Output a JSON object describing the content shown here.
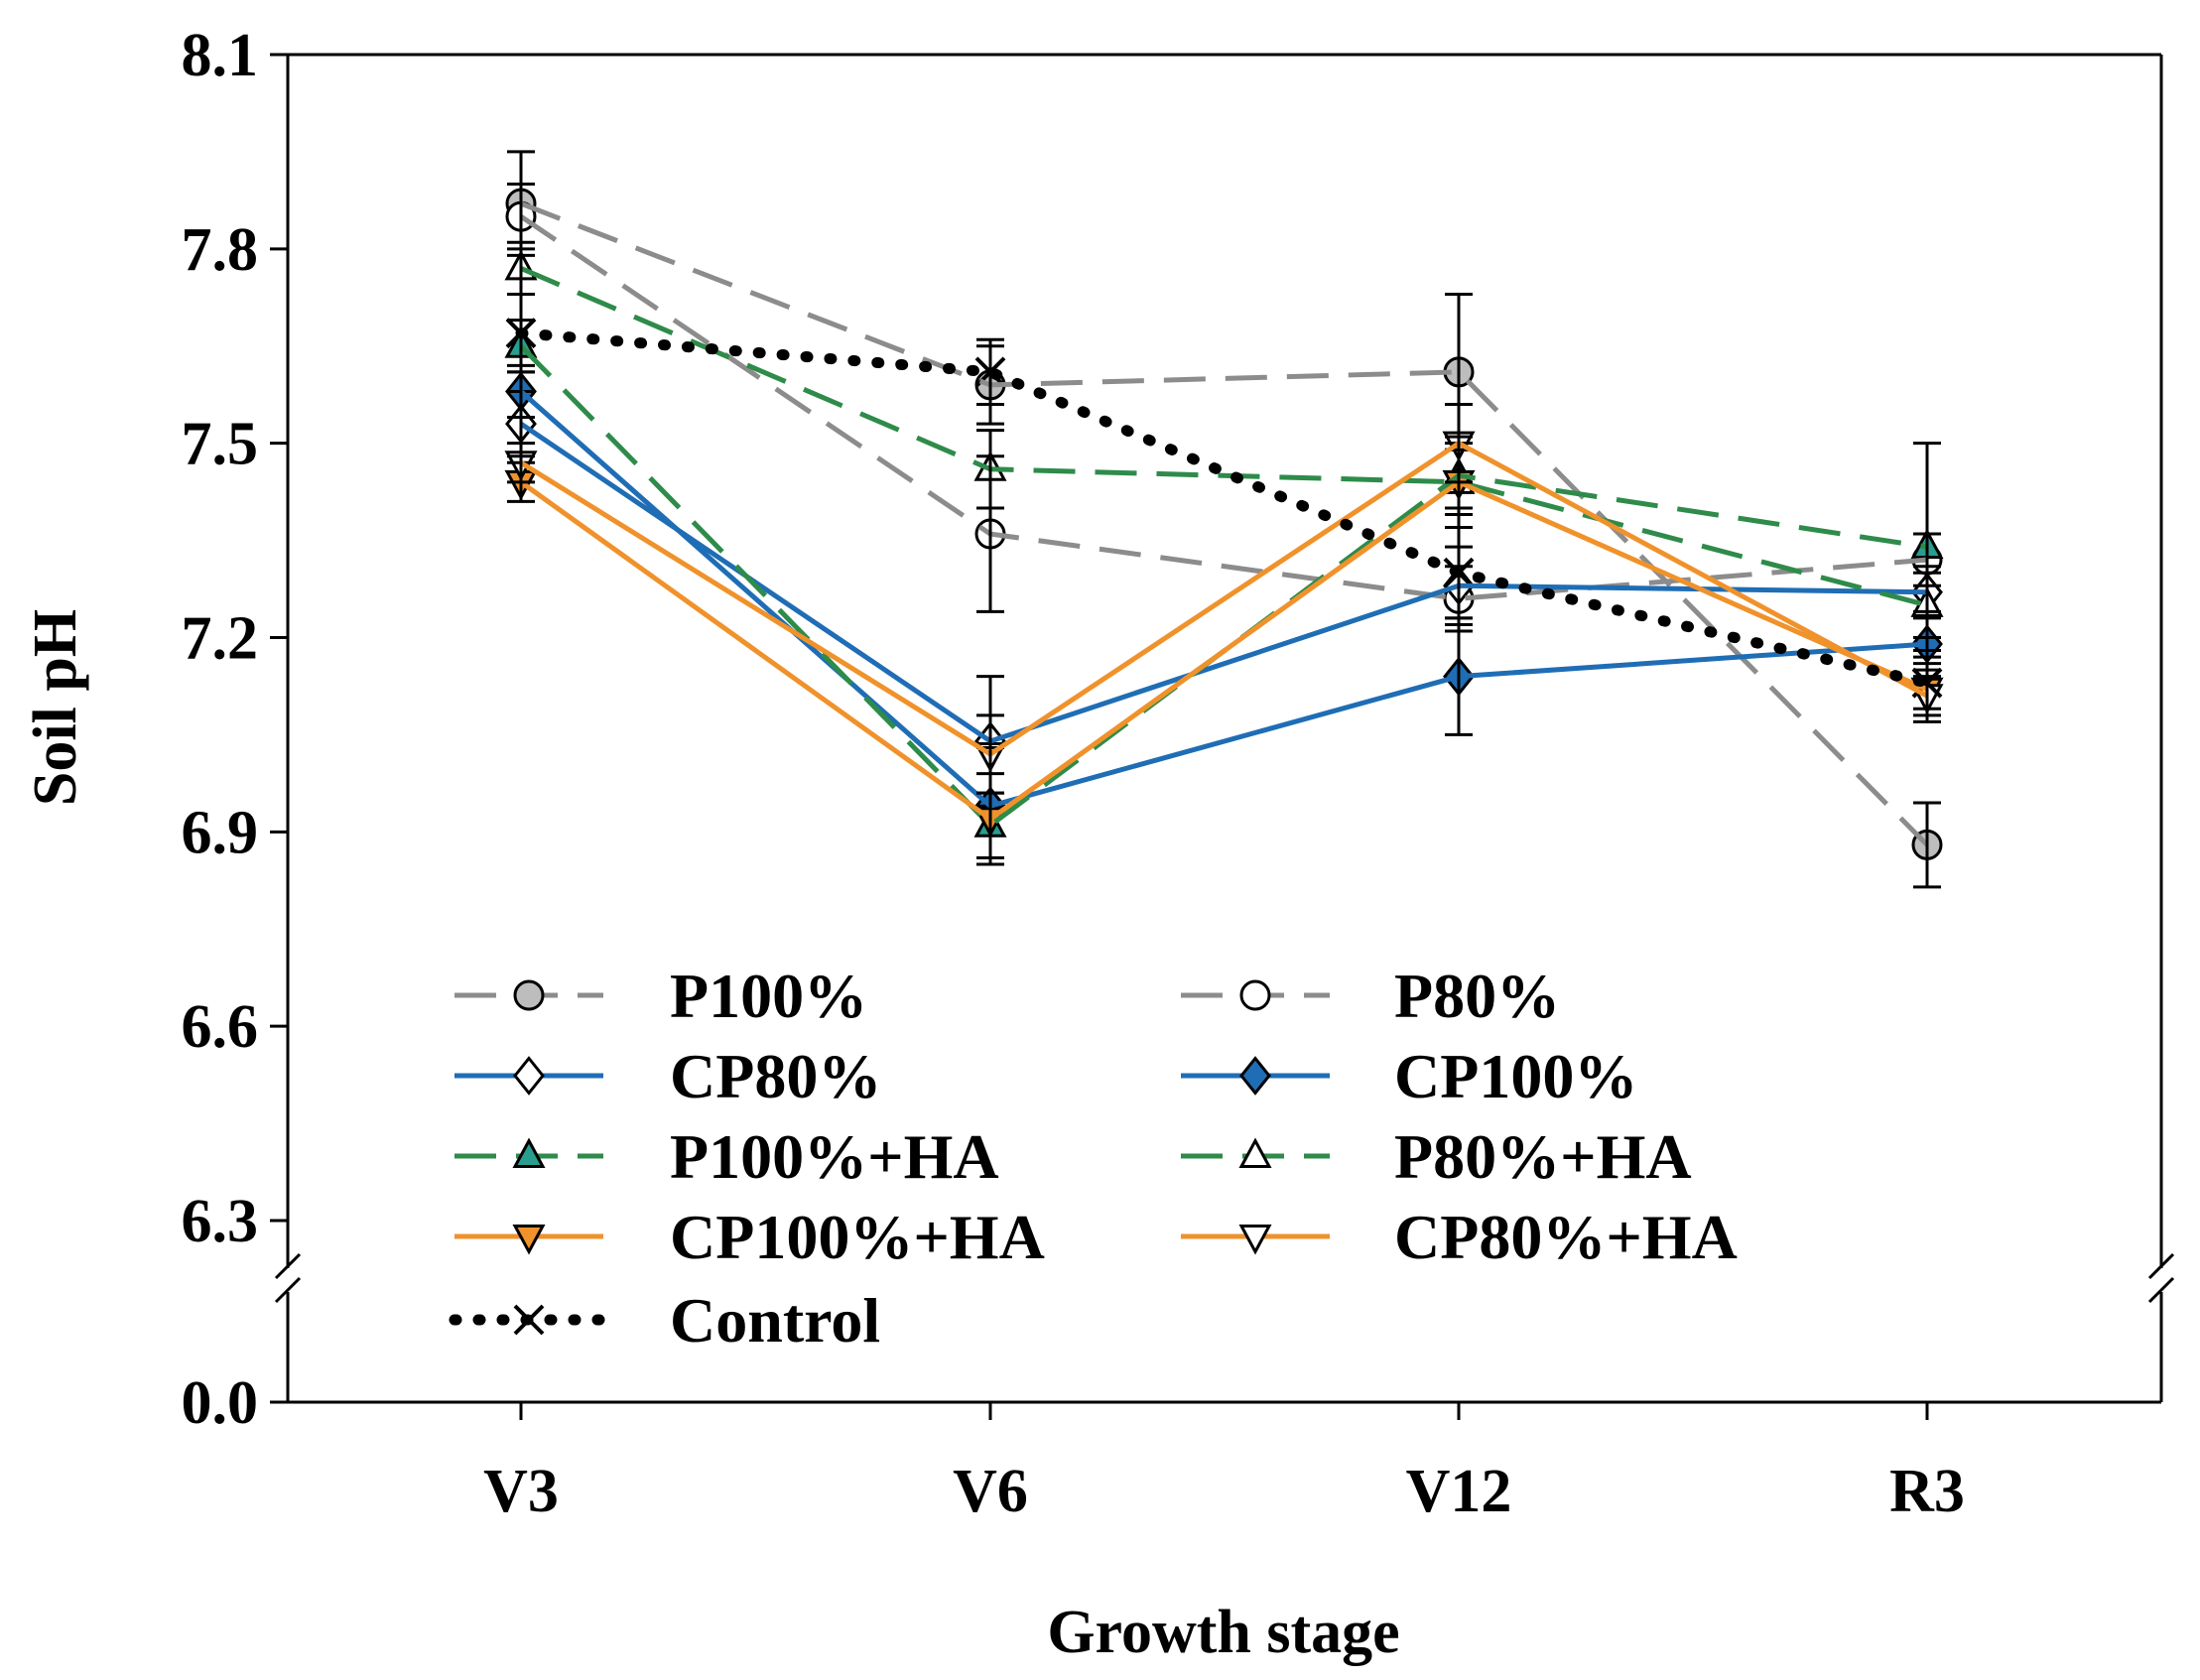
{
  "chart_data": {
    "type": "line",
    "title": "",
    "xlabel": "Growth stage",
    "ylabel": "Soil pH",
    "categories": [
      "V3",
      "V6",
      "V12",
      "R3"
    ],
    "y_ticks": [
      "0.0",
      "6.3",
      "6.6",
      "6.9",
      "7.2",
      "7.5",
      "7.8",
      "8.1"
    ],
    "ylim": [
      6.3,
      8.1
    ],
    "axis_break": {
      "lower": 0.0,
      "upper": 6.3
    },
    "legend_position": "lower-left inside",
    "series": [
      {
        "name": "P100%",
        "values": [
          7.87,
          7.59,
          7.61,
          6.88
        ],
        "errors": [
          0.08,
          0.06,
          0.12,
          0.065
        ],
        "line_color": "#8c8c8c",
        "dash": "dashed",
        "marker": "circle",
        "marker_fill": "#bdbdbd"
      },
      {
        "name": "P80%",
        "values": [
          7.85,
          7.36,
          7.26,
          7.32
        ],
        "errors": [
          0.05,
          0.12,
          0.05,
          0.04
        ],
        "line_color": "#8c8c8c",
        "dash": "dashed",
        "marker": "circle",
        "marker_fill": "#ffffff"
      },
      {
        "name": "CP80%",
        "values": [
          7.53,
          7.04,
          7.28,
          7.27
        ],
        "errors": [
          0.05,
          0.1,
          0.06,
          0.04
        ],
        "line_color": "#1f6db5",
        "dash": "solid",
        "marker": "diamond",
        "marker_fill": "#ffffff"
      },
      {
        "name": "CP100%",
        "values": [
          7.58,
          6.94,
          7.14,
          7.19
        ],
        "errors": [
          0.04,
          0.09,
          0.09,
          0.05
        ],
        "line_color": "#1f6db5",
        "dash": "solid",
        "marker": "diamond",
        "marker_fill": "#1f6db5"
      },
      {
        "name": "P100%+HA",
        "values": [
          7.65,
          6.91,
          7.45,
          7.34
        ],
        "errors": [
          0.04,
          0.05,
          0.05,
          0.16
        ],
        "line_color": "#2e8b4a",
        "dash": "dashed",
        "marker": "triangle-up",
        "marker_fill": "#2a9d8f"
      },
      {
        "name": "P80%+HA",
        "values": [
          7.77,
          7.46,
          7.44,
          7.25
        ],
        "errors": [
          0.04,
          0.06,
          0.07,
          0.05
        ],
        "line_color": "#2e8b4a",
        "dash": "dashed",
        "marker": "triangle-up",
        "marker_fill": "#ffffff"
      },
      {
        "name": "CP100%+HA",
        "values": [
          7.44,
          6.92,
          7.44,
          7.12
        ],
        "errors": [
          0.03,
          0.07,
          0.05,
          0.04
        ],
        "line_color": "#f0922b",
        "dash": "solid",
        "marker": "triangle-down",
        "marker_fill": "#f0922b"
      },
      {
        "name": "CP80%+HA",
        "values": [
          7.47,
          7.02,
          7.5,
          7.11
        ],
        "errors": [
          0.03,
          0.06,
          0.06,
          0.04
        ],
        "line_color": "#f0922b",
        "dash": "solid",
        "marker": "triangle-down",
        "marker_fill": "#ffffff"
      },
      {
        "name": "Control",
        "values": [
          7.67,
          7.61,
          7.3,
          7.13
        ],
        "errors": [
          0.06,
          0.05,
          0.07,
          0.04
        ],
        "line_color": "#000000",
        "dash": "dotted",
        "marker": "x",
        "marker_fill": "none"
      }
    ]
  }
}
